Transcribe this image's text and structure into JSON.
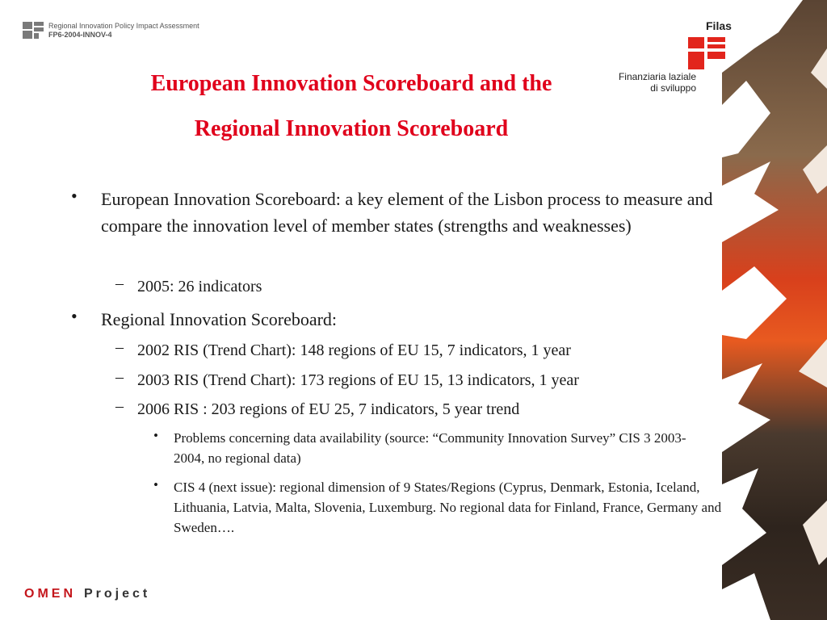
{
  "header": {
    "org_line1": "Regional Innovation Policy Impact Assessment",
    "org_line2": "FP6-2004-INNOV-4"
  },
  "logo": {
    "word": "Filas",
    "line1": "Finanziaria laziale",
    "line2": "di sviluppo",
    "color": "#e2251c"
  },
  "title": {
    "line1": "European Innovation Scoreboard and the",
    "line2": "Regional Innovation  Scoreboard",
    "color": "#e0001b"
  },
  "bullets": [
    {
      "level": 1,
      "marker": "•",
      "text": "European Innovation Scoreboard: a key element of the Lisbon process to measure and compare the innovation level of member states (strengths and weaknesses)"
    },
    {
      "level": 2,
      "marker": "–",
      "text": "2005: 26 indicators"
    },
    {
      "level": 1,
      "marker": "•",
      "text": "Regional Innovation Scoreboard:"
    },
    {
      "level": 2,
      "marker": "–",
      "text": "2002 RIS (Trend Chart): 148 regions of EU 15, 7 indicators, 1 year"
    },
    {
      "level": 2,
      "marker": "–",
      "text": "2003 RIS (Trend Chart): 173 regions of EU 15, 13 indicators, 1 year"
    },
    {
      "level": 2,
      "marker": "–",
      "text": "2006 RIS : 203 regions of EU 25, 7 indicators, 5 year trend"
    },
    {
      "level": 3,
      "marker": "•",
      "text": "Problems concerning data availability (source: “Community Innovation Survey” CIS 3 2003-2004, no regional data)"
    },
    {
      "level": 3,
      "marker": "•",
      "text": "CIS 4 (next issue): regional dimension of 9  States/Regions (Cyprus, Denmark, Estonia, Iceland, Lithuania, Latvia, Malta, Slovenia, Luxemburg. No regional data for Finland, France, Germany and Sweden…."
    }
  ],
  "footer": {
    "omen": "OMEN",
    "project": "Project",
    "omen_color": "#c4161c"
  }
}
